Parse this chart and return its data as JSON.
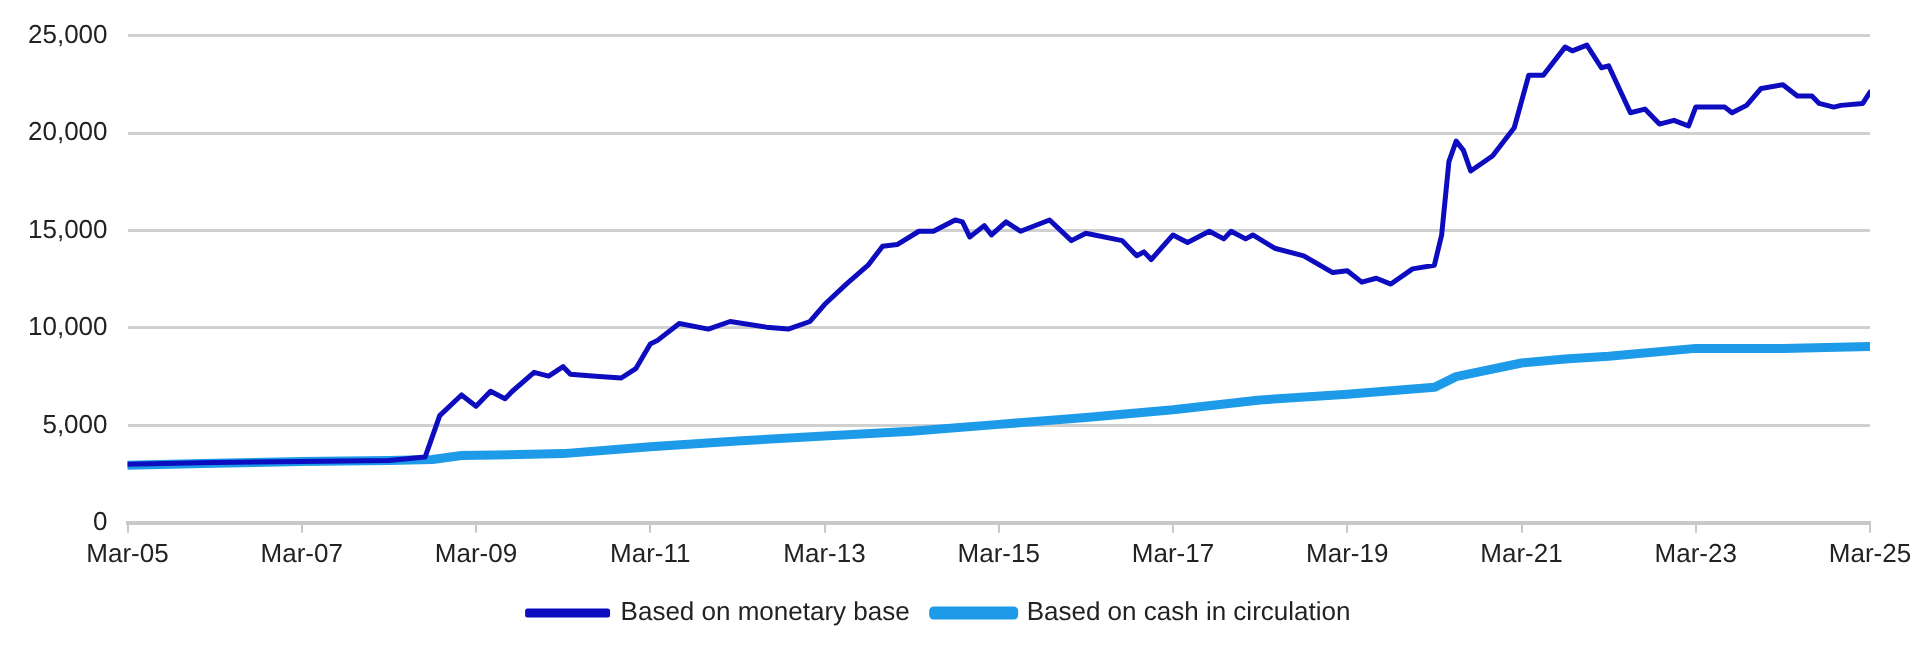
{
  "chart_data": {
    "type": "line",
    "xlim": [
      "2005-03",
      "2025-03"
    ],
    "xticks": [
      {
        "value": "2005-03",
        "label": "Mar-05"
      },
      {
        "value": "2007-03",
        "label": "Mar-07"
      },
      {
        "value": "2009-03",
        "label": "Mar-09"
      },
      {
        "value": "2011-03",
        "label": "Mar-11"
      },
      {
        "value": "2013-03",
        "label": "Mar-13"
      },
      {
        "value": "2015-03",
        "label": "Mar-15"
      },
      {
        "value": "2017-03",
        "label": "Mar-17"
      },
      {
        "value": "2019-03",
        "label": "Mar-19"
      },
      {
        "value": "2021-03",
        "label": "Mar-21"
      },
      {
        "value": "2023-03",
        "label": "Mar-23"
      },
      {
        "value": "2025-03",
        "label": "Mar-25"
      }
    ],
    "ylim": [
      0,
      25000
    ],
    "yticks": [
      0,
      {
        "value": 5000,
        "label": "5,000"
      },
      {
        "value": 10000,
        "label": "10,000"
      },
      {
        "value": 15000,
        "label": "15,000"
      },
      {
        "value": 20000,
        "label": "20,000"
      },
      {
        "value": 25000,
        "label": "25,000"
      }
    ],
    "grid": "y",
    "legend": "bottom",
    "marker": "none",
    "line_style": "solid",
    "series": [
      {
        "name": "Based on monetary base",
        "color": "#0d0dbf",
        "x": [
          "2005-03",
          "2006-03",
          "2007-03",
          "2008-03",
          "2008-08",
          "2008-10",
          "2009-01",
          "2009-03",
          "2009-05",
          "2009-07",
          "2009-08",
          "2009-11",
          "2010-01",
          "2010-03",
          "2010-04",
          "2010-07",
          "2010-11",
          "2011-01",
          "2011-03",
          "2011-04",
          "2011-07",
          "2011-11",
          "2012-02",
          "2012-07",
          "2012-10",
          "2013-01",
          "2013-03",
          "2013-06",
          "2013-09",
          "2013-11",
          "2014-01",
          "2014-04",
          "2014-06",
          "2014-09",
          "2014-10",
          "2014-11",
          "2015-01",
          "2015-02",
          "2015-04",
          "2015-06",
          "2015-10",
          "2016-01",
          "2016-03",
          "2016-08",
          "2016-10",
          "2016-11",
          "2016-12",
          "2017-03",
          "2017-05",
          "2017-08",
          "2017-10",
          "2017-11",
          "2018-01",
          "2018-02",
          "2018-05",
          "2018-09",
          "2019-01",
          "2019-03",
          "2019-05",
          "2019-07",
          "2019-09",
          "2019-12",
          "2020-03",
          "2020-04",
          "2020-05",
          "2020-06",
          "2020-07",
          "2020-08",
          "2020-11",
          "2021-02",
          "2021-04",
          "2021-06",
          "2021-09",
          "2021-10",
          "2021-12",
          "2022-02",
          "2022-03",
          "2022-06",
          "2022-08",
          "2022-10",
          "2022-12",
          "2023-02",
          "2023-03",
          "2023-07",
          "2023-08",
          "2023-10",
          "2023-12",
          "2024-03",
          "2024-05",
          "2024-07",
          "2024-08",
          "2024-10",
          "2024-11",
          "2025-02",
          "2025-03"
        ],
        "values": [
          3000,
          3100,
          3150,
          3200,
          3380,
          5500,
          6560,
          5980,
          6750,
          6370,
          6750,
          7720,
          7530,
          8010,
          7620,
          7530,
          7430,
          7910,
          9170,
          9360,
          10230,
          9940,
          10330,
          10040,
          9940,
          10330,
          11200,
          12250,
          13220,
          14190,
          14280,
          14960,
          14960,
          15540,
          15440,
          14670,
          15250,
          14770,
          15440,
          14960,
          15540,
          14480,
          14860,
          14480,
          13700,
          13900,
          13510,
          14770,
          14380,
          14960,
          14570,
          14960,
          14570,
          14770,
          14090,
          13700,
          12840,
          12930,
          12350,
          12550,
          12250,
          13030,
          13220,
          14770,
          18530,
          19590,
          19110,
          18050,
          18820,
          20270,
          22970,
          22970,
          24410,
          24220,
          24510,
          23350,
          23450,
          21040,
          21230,
          20460,
          20650,
          20360,
          21330,
          21330,
          21040,
          21420,
          22290,
          22480,
          21900,
          21900,
          21520,
          21330,
          21420,
          21520,
          22100
        ]
      },
      {
        "name": "Based on cash in circulation",
        "color": "#1e9be8",
        "x": [
          "2005-03",
          "2006-03",
          "2007-03",
          "2008-03",
          "2008-09",
          "2009-01",
          "2010-03",
          "2011-03",
          "2012-03",
          "2013-03",
          "2014-03",
          "2015-03",
          "2016-03",
          "2017-03",
          "2018-03",
          "2019-03",
          "2020-03",
          "2020-06",
          "2021-03",
          "2021-09",
          "2022-03",
          "2023-03",
          "2024-03",
          "2025-03"
        ],
        "values": [
          2950,
          3050,
          3150,
          3200,
          3250,
          3450,
          3550,
          3900,
          4200,
          4450,
          4700,
          5050,
          5400,
          5800,
          6300,
          6600,
          6950,
          7500,
          8200,
          8400,
          8550,
          8950,
          8950,
          9050
        ]
      }
    ]
  }
}
